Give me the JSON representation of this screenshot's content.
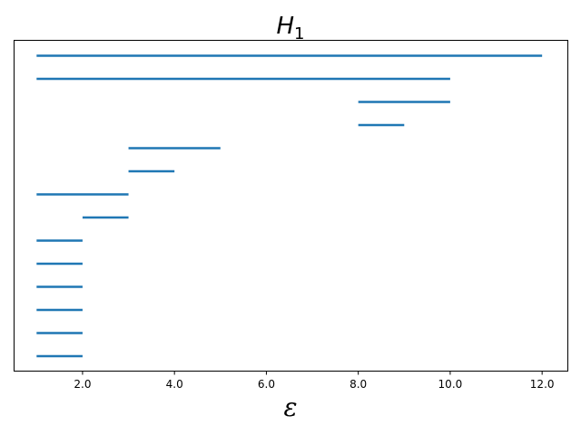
{
  "chart_data": {
    "type": "barcode",
    "title": {
      "main": "H",
      "subscript": "1"
    },
    "xlabel": "ε",
    "ylabel": "",
    "xlim": [
      0.5,
      12.55
    ],
    "xticks": [
      2.0,
      4.0,
      6.0,
      8.0,
      10.0,
      12.0
    ],
    "xtick_labels": [
      "2.0",
      "4.0",
      "6.0",
      "8.0",
      "10.0",
      "12.0"
    ],
    "y_axis_visible": false,
    "grid": false,
    "bar_color": "#1f77b4",
    "intervals": [
      {
        "birth": 1.0,
        "death": 12.0
      },
      {
        "birth": 1.0,
        "death": 10.0
      },
      {
        "birth": 8.0,
        "death": 10.0
      },
      {
        "birth": 8.0,
        "death": 9.0
      },
      {
        "birth": 3.0,
        "death": 5.0
      },
      {
        "birth": 3.0,
        "death": 4.0
      },
      {
        "birth": 1.0,
        "death": 3.0
      },
      {
        "birth": 2.0,
        "death": 3.0
      },
      {
        "birth": 1.0,
        "death": 2.0
      },
      {
        "birth": 1.0,
        "death": 2.0
      },
      {
        "birth": 1.0,
        "death": 2.0
      },
      {
        "birth": 1.0,
        "death": 2.0
      },
      {
        "birth": 1.0,
        "death": 2.0
      },
      {
        "birth": 1.0,
        "death": 2.0
      }
    ]
  }
}
